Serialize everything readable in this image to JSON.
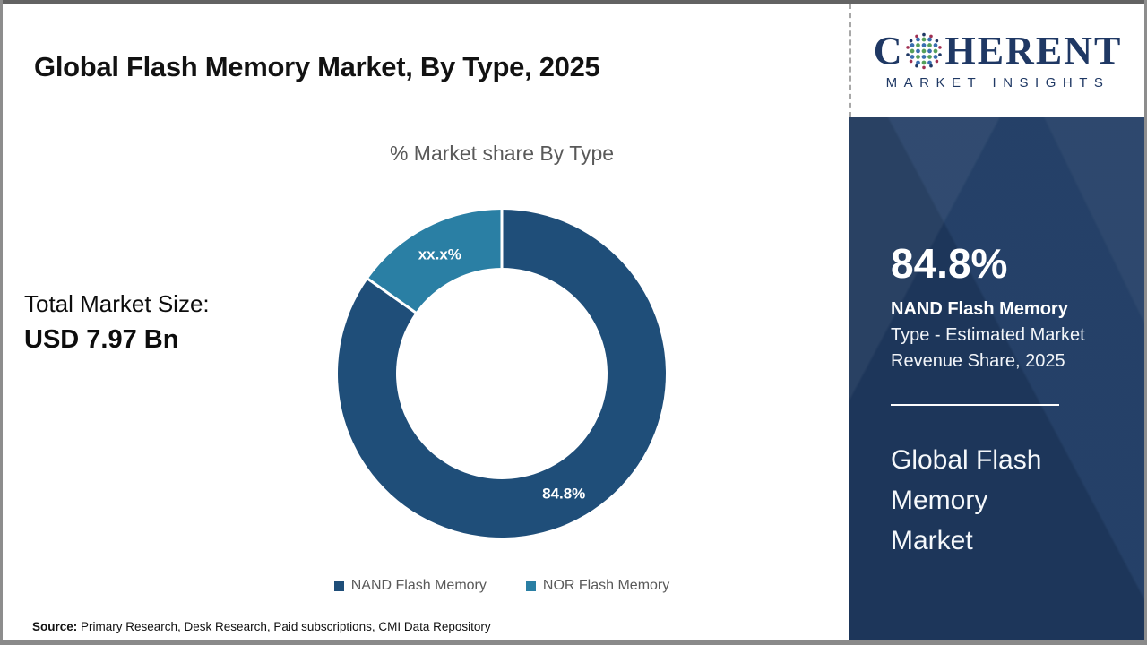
{
  "page": {
    "title": "Global Flash Memory Market, By Type, 2025",
    "source_label": "Source:",
    "source_text": " Primary Research, Desk Research, Paid subscriptions, CMI Data Repository"
  },
  "logo": {
    "name": "Coherent Market Insights",
    "word_start": "C",
    "word_end": "HERENT",
    "subtitle": "MARKET INSIGHTS",
    "brand_color": "#1f3864"
  },
  "left_panel": {
    "label": "Total Market Size:",
    "value": "USD 7.97 Bn"
  },
  "chart_data": {
    "type": "pie",
    "subtype": "donut",
    "title": "% Market share By Type",
    "categories": [
      "NAND Flash Memory",
      "NOR Flash Memory"
    ],
    "values": [
      84.8,
      15.2
    ],
    "slice_labels": [
      "84.8%",
      "xx.x%"
    ],
    "colors": [
      "#1f4e79",
      "#2a7fa4"
    ],
    "start_angle_deg": 0,
    "direction": "clockwise",
    "inner_radius_ratio": 0.645,
    "legend_position": "bottom"
  },
  "sidebar": {
    "background_color": "#203c64",
    "stat_value": "84.8%",
    "stat_highlight": "NAND Flash Memory",
    "stat_caption": "Type - Estimated Market Revenue Share, 2025",
    "report_title": "Global Flash Memory Market"
  }
}
